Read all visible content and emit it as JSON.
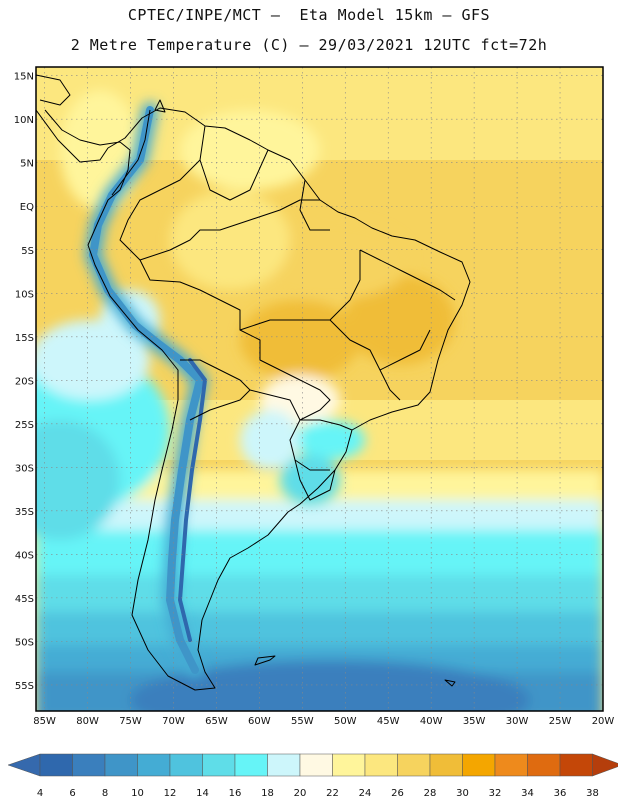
{
  "header": {
    "line1": "CPTEC/INPE/MCT –  Eta Model 15km – GFS",
    "line2": "2 Metre Temperature (C) – 29/03/2021 12UTC fct=72h"
  },
  "map": {
    "lat_labels": [
      "15N",
      "10N",
      "5N",
      "EQ",
      "5S",
      "10S",
      "15S",
      "20S",
      "25S",
      "30S",
      "35S",
      "40S",
      "45S",
      "50S",
      "55S"
    ],
    "lon_labels": [
      "85W",
      "80W",
      "75W",
      "70W",
      "65W",
      "60W",
      "55W",
      "50W",
      "45W",
      "40W",
      "35W",
      "30W",
      "25W",
      "20W"
    ],
    "lat_range": [
      -58,
      16
    ],
    "lon_range": [
      -86,
      -20
    ],
    "grid": "dotted"
  },
  "colorbar": {
    "ticks": [
      "4",
      "6",
      "8",
      "10",
      "12",
      "14",
      "16",
      "18",
      "20",
      "22",
      "24",
      "26",
      "28",
      "30",
      "32",
      "34",
      "36",
      "38"
    ],
    "colors": [
      "#2f68ad",
      "#3a7fbd",
      "#3f95c8",
      "#44acd4",
      "#4fc3de",
      "#5fdde8",
      "#66f4f7",
      "#cdf6fb",
      "#fff9e3",
      "#fff59b",
      "#fce77f",
      "#f6d35e",
      "#f0bd38",
      "#f4a600",
      "#ee8a1c",
      "#df6b10",
      "#c44708"
    ],
    "low_color": "#3569ad",
    "high_color": "#b53e0c"
  }
}
